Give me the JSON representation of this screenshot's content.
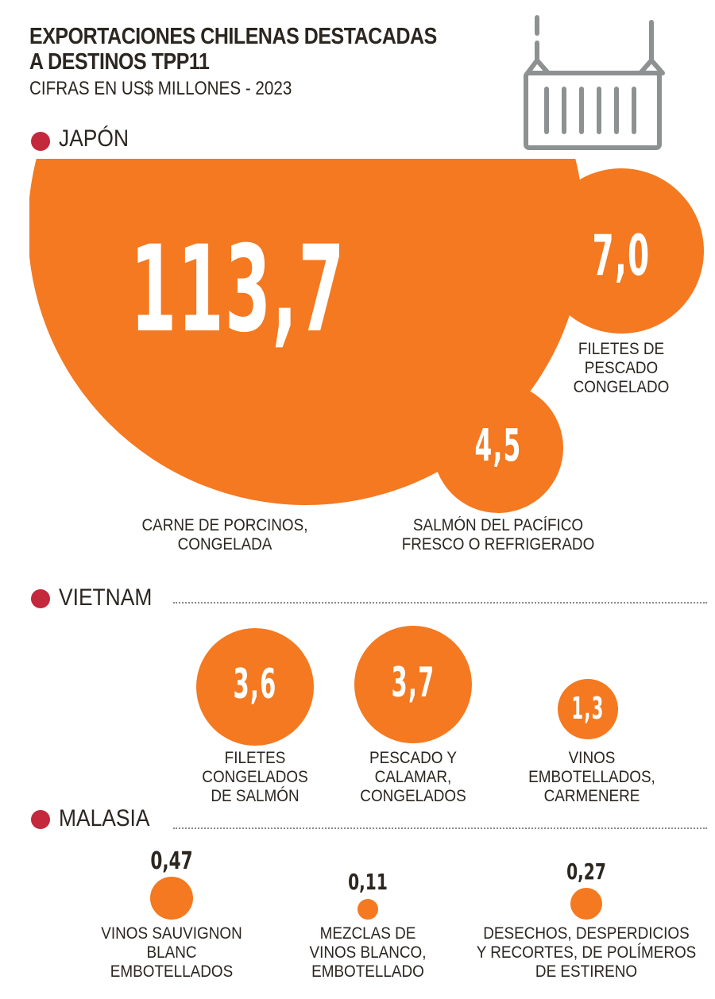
{
  "title_line1": "EXPORTACIONES CHILENAS DESTACADAS",
  "title_line2": "A DESTINOS TPP11",
  "subtitle": "CIFRAS EN US$ MILLONES - 2023",
  "colors": {
    "bubble": "#f47920",
    "dot": "#c4283d",
    "text": "#2b2620",
    "icon": "#8e9192"
  },
  "icon": "shipping-container-icon",
  "chart_data": {
    "type": "bubble",
    "unit": "US$ millones",
    "groups": [
      {
        "name": "JAPÓN",
        "items": [
          {
            "label": "CARNE DE PORCINOS, CONGELADA",
            "label_lines": [
              "CARNE DE PORCINOS,",
              "CONGELADA"
            ],
            "value": 113.7,
            "display": "113,7"
          },
          {
            "label": "FILETES DE PESCADO CONGELADO",
            "label_lines": [
              "FILETES DE",
              "PESCADO",
              "CONGELADO"
            ],
            "value": 7.0,
            "display": "7,0"
          },
          {
            "label": "SALMÓN DEL PACÍFICO FRESCO O REFRIGERADO",
            "label_lines": [
              "SALMÓN DEL PACÍFICO",
              "FRESCO O REFRIGERADO"
            ],
            "value": 4.5,
            "display": "4,5"
          }
        ]
      },
      {
        "name": "VIETNAM",
        "items": [
          {
            "label": "FILETES CONGELADOS DE SALMÓN",
            "label_lines": [
              "FILETES",
              "CONGELADOS",
              "DE SALMÓN"
            ],
            "value": 3.6,
            "display": "3,6"
          },
          {
            "label": "PESCADO Y CALAMAR, CONGELADOS",
            "label_lines": [
              "PESCADO Y",
              "CALAMAR,",
              "CONGELADOS"
            ],
            "value": 3.7,
            "display": "3,7"
          },
          {
            "label": "VINOS EMBOTELLADOS, CARMENERE",
            "label_lines": [
              "VINOS",
              "EMBOTELLADOS,",
              "CARMENERE"
            ],
            "value": 1.3,
            "display": "1,3"
          }
        ]
      },
      {
        "name": "MALASIA",
        "items": [
          {
            "label": "VINOS SAUVIGNON BLANC EMBOTELLADOS",
            "label_lines": [
              "VINOS SAUVIGNON",
              "BLANC",
              "EMBOTELLADOS"
            ],
            "value": 0.47,
            "display": "0,47"
          },
          {
            "label": "MEZCLAS DE VINOS BLANCO, EMBOTELLADO",
            "label_lines": [
              "MEZCLAS DE",
              "VINOS BLANCO,",
              "EMBOTELLADO"
            ],
            "value": 0.11,
            "display": "0,11"
          },
          {
            "label": "DESECHOS, DESPERDICIOS Y RECORTES, DE POLÍMEROS DE ESTIRENO",
            "label_lines": [
              "DESECHOS, DESPERDICIOS",
              "Y RECORTES, DE POLÍMEROS",
              "DE ESTIRENO"
            ],
            "value": 0.27,
            "display": "0,27"
          }
        ]
      }
    ]
  }
}
